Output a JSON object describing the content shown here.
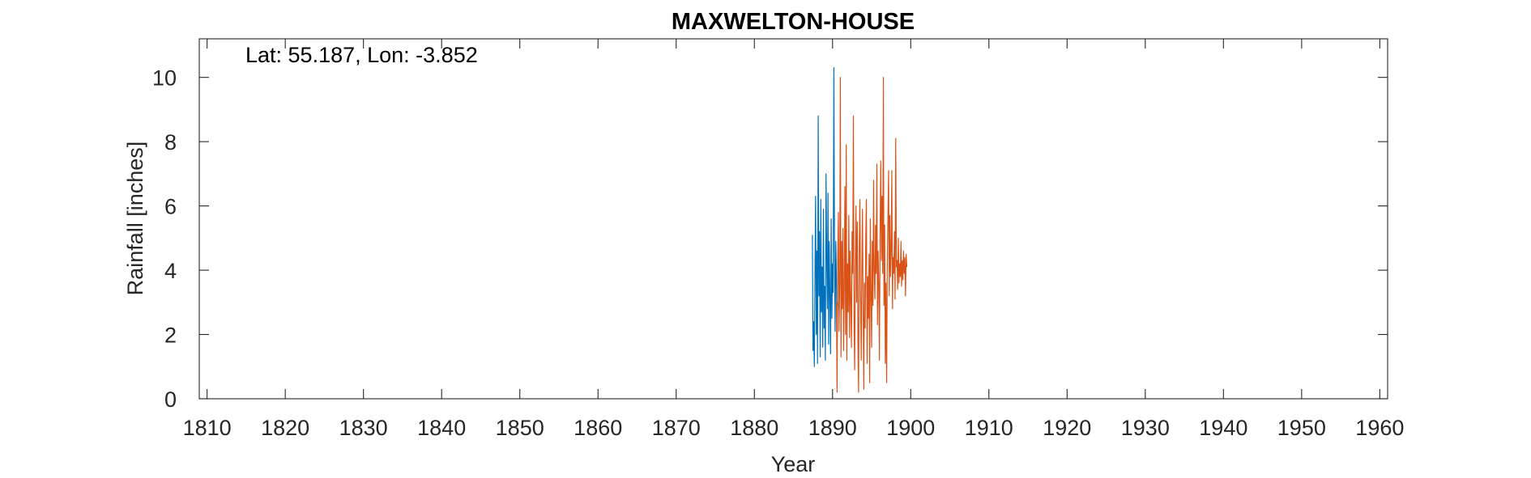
{
  "chart_data": {
    "type": "line",
    "title": "MAXWELTON-HOUSE",
    "annotation": "Lat: 55.187, Lon: -3.852",
    "xlabel": "Year",
    "ylabel": "Rainfall [inches]",
    "xlim": [
      1809,
      1961
    ],
    "ylim": [
      0,
      11.2
    ],
    "xticks": [
      1810,
      1820,
      1830,
      1840,
      1850,
      1860,
      1870,
      1880,
      1890,
      1900,
      1910,
      1920,
      1930,
      1940,
      1950,
      1960
    ],
    "yticks": [
      0,
      2,
      4,
      6,
      8,
      10
    ],
    "grid": false,
    "legend": "none",
    "series": [
      {
        "color": "#0072BD",
        "x": [
          1887.42,
          1887.5,
          1887.58,
          1887.67,
          1887.75,
          1887.83,
          1887.92,
          1888.0,
          1888.08,
          1888.17,
          1888.25,
          1888.33,
          1888.42,
          1888.5,
          1888.58,
          1888.67,
          1888.75,
          1888.83,
          1888.92,
          1889.0,
          1889.08,
          1889.17,
          1889.25,
          1889.33,
          1889.42,
          1889.5,
          1889.58,
          1889.67,
          1889.75,
          1889.83,
          1889.92,
          1890.0,
          1890.08,
          1890.17,
          1890.25,
          1890.33,
          1890.42,
          1890.5,
          1890.58,
          1890.67
        ],
        "y": [
          5.1,
          1.5,
          2.4,
          1.0,
          3.8,
          6.3,
          2.0,
          4.6,
          1.1,
          8.8,
          3.2,
          5.2,
          1.3,
          6.2,
          2.7,
          4.1,
          1.6,
          5.9,
          2.2,
          3.5,
          1.2,
          7.0,
          4.4,
          2.8,
          6.4,
          1.7,
          4.9,
          3.0,
          1.4,
          5.6,
          2.5,
          4.2,
          3.3,
          10.3,
          4.7,
          2.1,
          4.9,
          3.7,
          1.9,
          3.0
        ]
      },
      {
        "color": "#D95319",
        "x": [
          1890.5,
          1890.58,
          1890.67,
          1890.75,
          1890.83,
          1890.92,
          1891.0,
          1891.08,
          1891.17,
          1891.25,
          1891.33,
          1891.42,
          1891.5,
          1891.58,
          1891.67,
          1891.75,
          1891.83,
          1891.92,
          1892.0,
          1892.08,
          1892.17,
          1892.25,
          1892.33,
          1892.42,
          1892.5,
          1892.58,
          1892.67,
          1892.75,
          1892.83,
          1892.92,
          1893.0,
          1893.08,
          1893.17,
          1893.25,
          1893.33,
          1893.42,
          1893.5,
          1893.58,
          1893.67,
          1893.75,
          1893.83,
          1893.92,
          1894.0,
          1894.08,
          1894.17,
          1894.25,
          1894.33,
          1894.42,
          1894.5,
          1894.58,
          1894.67,
          1894.75,
          1894.83,
          1894.92,
          1895.0,
          1895.08,
          1895.17,
          1895.25,
          1895.33,
          1895.42,
          1895.5,
          1895.58,
          1895.67,
          1895.75,
          1895.83,
          1895.92,
          1896.0,
          1896.08,
          1896.17,
          1896.25,
          1896.33,
          1896.42,
          1896.5,
          1896.58,
          1896.67,
          1896.75,
          1896.83,
          1896.92,
          1897.0,
          1897.08,
          1897.17,
          1897.25,
          1897.33,
          1897.42,
          1897.5,
          1897.58,
          1897.67,
          1897.75,
          1897.83,
          1897.92,
          1898.0,
          1898.08,
          1898.17,
          1898.25,
          1898.33,
          1898.42,
          1898.5,
          1898.58,
          1898.67,
          1898.75,
          1898.83,
          1898.92,
          1899.0,
          1899.08,
          1899.17,
          1899.25,
          1899.33,
          1899.42,
          1899.5
        ],
        "y": [
          3.0,
          0.2,
          4.5,
          5.8,
          2.1,
          3.6,
          10.0,
          1.3,
          4.9,
          2.8,
          5.3,
          1.5,
          3.4,
          6.6,
          2.0,
          7.9,
          1.2,
          4.2,
          2.7,
          5.7,
          1.9,
          4.6,
          3.1,
          1.6,
          5.2,
          3.9,
          8.8,
          2.4,
          0.9,
          4.3,
          6.0,
          3.0,
          5.5,
          1.8,
          0.2,
          4.7,
          6.2,
          3.3,
          1.2,
          4.0,
          5.9,
          2.6,
          0.3,
          3.6,
          2.2,
          5.0,
          6.2,
          1.1,
          3.8,
          2.5,
          4.5,
          0.5,
          5.6,
          3.2,
          1.6,
          4.9,
          2.9,
          6.8,
          4.0,
          3.1,
          5.4,
          3.9,
          7.3,
          2.3,
          4.6,
          3.5,
          1.2,
          5.1,
          7.4,
          4.3,
          6.3,
          3.9,
          10.0,
          2.9,
          5.4,
          1.1,
          3.6,
          0.5,
          4.0,
          5.5,
          7.1,
          3.2,
          5.7,
          3.8,
          4.6,
          7.1,
          2.8,
          4.4,
          3.9,
          5.2,
          3.1,
          8.1,
          4.1,
          4.3,
          3.4,
          5.0,
          3.6,
          4.2,
          3.8,
          4.9,
          3.5,
          4.3,
          3.7,
          4.6,
          3.9,
          4.4,
          3.2,
          4.5,
          4.1
        ]
      }
    ]
  }
}
